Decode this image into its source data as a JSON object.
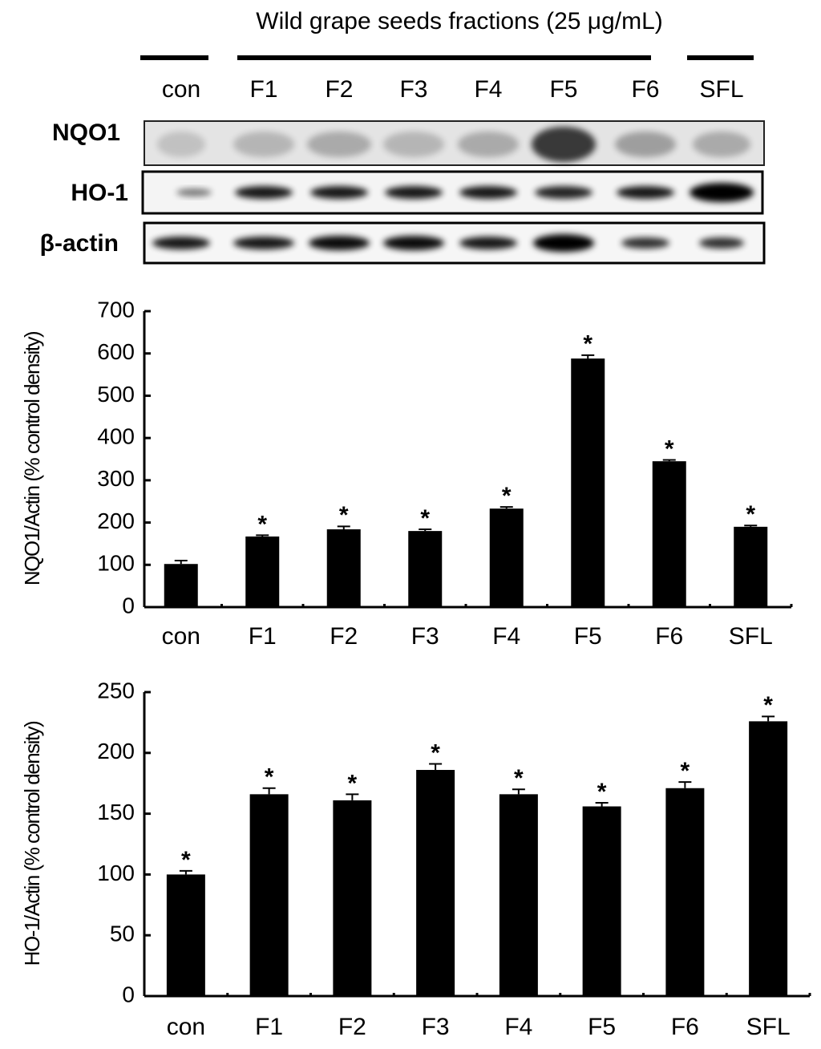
{
  "blot": {
    "title": "Wild grape seeds fractions (25 μg/mL)",
    "lanes": [
      "con",
      "F1",
      "F2",
      "F3",
      "F4",
      "F5",
      "F6",
      "SFL"
    ],
    "rows": [
      "NQO1",
      "HO-1",
      "β-actin"
    ]
  },
  "chart_data": [
    {
      "type": "bar",
      "ylabel": "NQO1/Actin (% control density)",
      "categories": [
        "con",
        "F1",
        "F2",
        "F3",
        "F4",
        "F5",
        "F6",
        "SFL"
      ],
      "values": [
        102,
        167,
        184,
        180,
        233,
        588,
        345,
        190
      ],
      "errors": [
        8,
        3,
        7,
        4,
        4,
        8,
        3,
        3
      ],
      "significance": [
        null,
        "*",
        "*",
        "*",
        "*",
        "*",
        "*",
        "*"
      ],
      "color": "#000000",
      "ylim": [
        0,
        700
      ],
      "yticks": [
        0,
        100,
        200,
        300,
        400,
        500,
        600,
        700
      ]
    },
    {
      "type": "bar",
      "ylabel": "HO-1/Actin (% control density)",
      "categories": [
        "con",
        "F1",
        "F2",
        "F3",
        "F4",
        "F5",
        "F6",
        "SFL"
      ],
      "values": [
        100,
        166,
        161,
        186,
        166,
        156,
        171,
        226
      ],
      "errors": [
        3,
        5,
        5,
        5,
        4,
        3,
        5,
        4
      ],
      "significance": [
        "*",
        "*",
        "*",
        "*",
        "*",
        "*",
        "*",
        "*"
      ],
      "color": "#000000",
      "ylim": [
        0,
        250
      ],
      "yticks": [
        0,
        50,
        100,
        150,
        200,
        250
      ]
    }
  ]
}
